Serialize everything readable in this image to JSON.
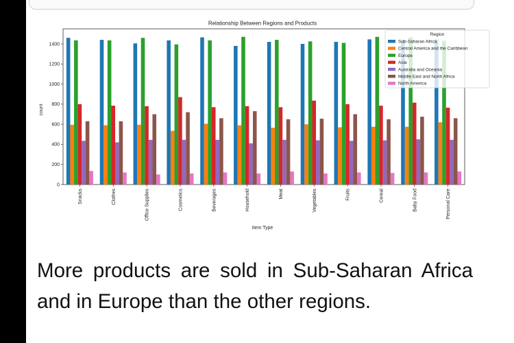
{
  "chart_data": {
    "type": "bar",
    "title": "Relationship Between Regions and Products",
    "xlabel": "Item Type",
    "ylabel": "count",
    "ylim": [
      0,
      1550
    ],
    "yticks": [
      0,
      200,
      400,
      600,
      800,
      1000,
      1200,
      1400
    ],
    "categories": [
      "Snacks",
      "Clothes",
      "Office Supplies",
      "Cosmetics",
      "Beverages",
      "Household",
      "Meat",
      "Vegetables",
      "Fruits",
      "Cereal",
      "Baby Food",
      "Personal Care"
    ],
    "legend_title": "Region",
    "legend_position": "top-right",
    "series": [
      {
        "name": "Sub-Saharan Africa",
        "color": "#1f77b4",
        "values": [
          1460,
          1440,
          1405,
          1435,
          1465,
          1380,
          1420,
          1400,
          1420,
          1445,
          1440,
          1445
        ]
      },
      {
        "name": "Central America and the Caribbean",
        "color": "#ff7f0e",
        "values": [
          595,
          590,
          595,
          535,
          605,
          590,
          565,
          600,
          570,
          575,
          575,
          620
        ]
      },
      {
        "name": "Europe",
        "color": "#2ca02c",
        "values": [
          1435,
          1435,
          1460,
          1395,
          1435,
          1470,
          1440,
          1425,
          1410,
          1470,
          1465,
          1430
        ]
      },
      {
        "name": "Asia",
        "color": "#d62728",
        "values": [
          800,
          785,
          780,
          870,
          770,
          780,
          770,
          835,
          800,
          785,
          815,
          765
        ]
      },
      {
        "name": "Australia and Oceania",
        "color": "#9467bd",
        "values": [
          435,
          420,
          445,
          445,
          445,
          410,
          445,
          440,
          435,
          440,
          450,
          445
        ]
      },
      {
        "name": "Middle East and North Africa",
        "color": "#8c564b",
        "values": [
          630,
          630,
          700,
          720,
          660,
          730,
          650,
          655,
          700,
          650,
          675,
          660
        ]
      },
      {
        "name": "North America",
        "color": "#e377c2",
        "values": [
          135,
          120,
          100,
          110,
          120,
          110,
          130,
          110,
          120,
          115,
          120,
          130
        ]
      }
    ]
  },
  "caption": "More products are sold in Sub-Saharan Africa and in Europe than the other regions."
}
